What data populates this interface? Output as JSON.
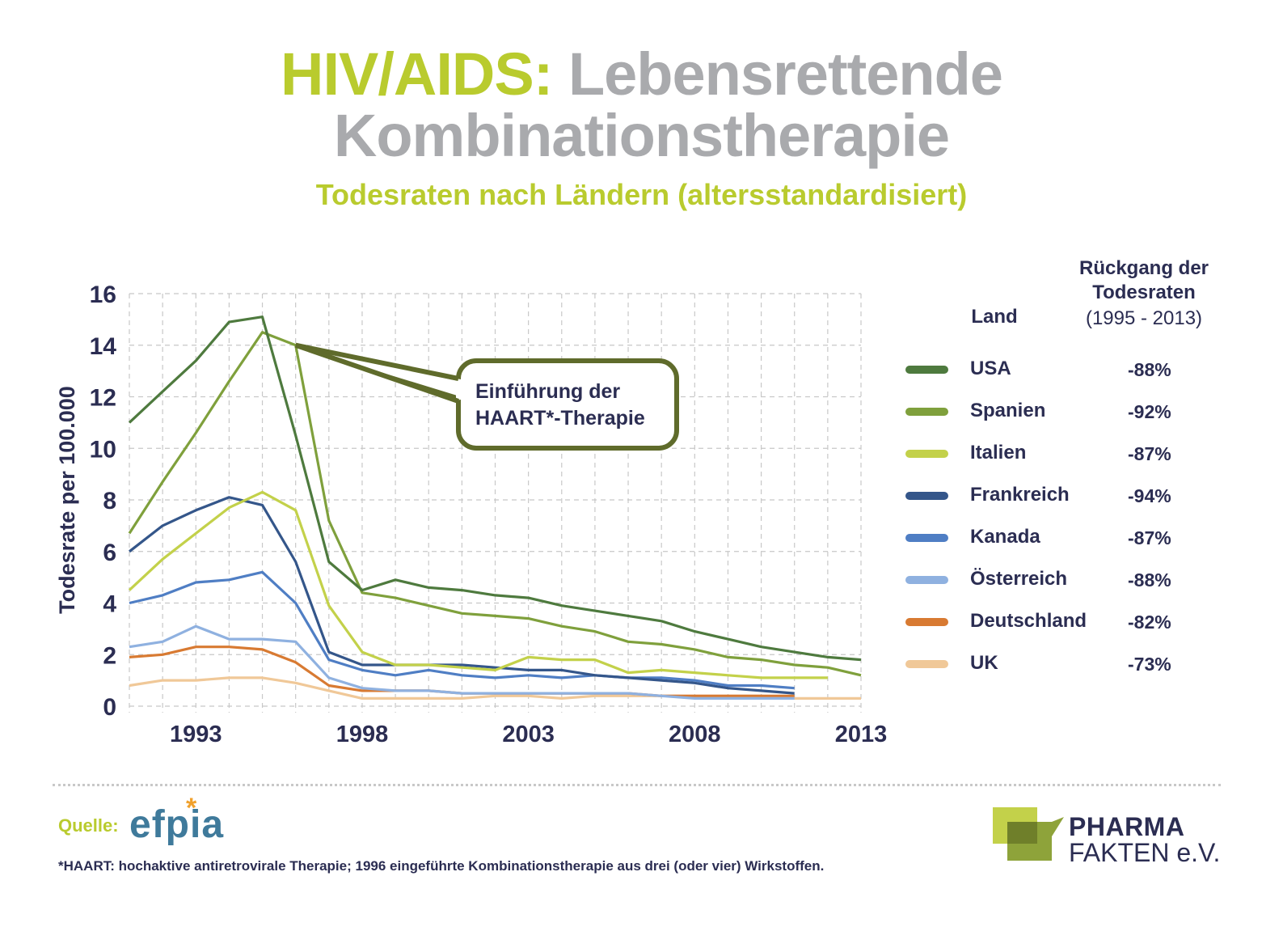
{
  "header": {
    "title_part1": "HIV/AIDS:",
    "title_part2": "Lebensrettende",
    "title_line2": "Kombinationstherapie",
    "subtitle": "Todesraten nach Ländern (altersstandardisiert)"
  },
  "colors": {
    "accent_green": "#b9cb2e",
    "title_grey": "#a9aaad",
    "text_navy": "#2b2d52",
    "callout_border": "#5f6b2b",
    "grid": "#c8c8c8"
  },
  "legend": {
    "col_land": "Land",
    "col_decline_line1": "Rückgang der",
    "col_decline_line2": "Todesraten",
    "col_decline_period": "(1995 - 2013)",
    "rows": [
      {
        "name": "USA",
        "pct": "-88%",
        "color": "#4e7a3e"
      },
      {
        "name": "Spanien",
        "pct": "-92%",
        "color": "#7fa03c"
      },
      {
        "name": "Italien",
        "pct": "-87%",
        "color": "#c3d14a"
      },
      {
        "name": "Frankreich",
        "pct": "-94%",
        "color": "#34568a"
      },
      {
        "name": "Kanada",
        "pct": "-87%",
        "color": "#4f7ec4"
      },
      {
        "name": "Österreich",
        "pct": "-88%",
        "color": "#8fb1e0"
      },
      {
        "name": "Deutschland",
        "pct": "-82%",
        "color": "#d87a32"
      },
      {
        "name": "UK",
        "pct": "-73%",
        "color": "#f0c898"
      }
    ]
  },
  "callout": {
    "line1": "Einführung der",
    "line2": "HAART*-Therapie",
    "target_year": 1996,
    "target_value": 14.0
  },
  "footer": {
    "source_label": "Quelle:",
    "source_logo": "efpia",
    "source_logo_star": "*",
    "footnote": "*HAART: hochaktive antiretrovirale Therapie; 1996 eingeführte Kombinationstherapie aus drei (oder vier) Wirkstoffen.",
    "brand_line1": "PHARMA",
    "brand_line2": "FAKTEN e.V."
  },
  "chart_data": {
    "type": "line",
    "title": "Todesraten nach Ländern (altersstandardisiert)",
    "xlabel": "",
    "ylabel": "Todesrate per 100.000",
    "x": [
      1991,
      1992,
      1993,
      1994,
      1995,
      1996,
      1997,
      1998,
      1999,
      2000,
      2001,
      2002,
      2003,
      2004,
      2005,
      2006,
      2007,
      2008,
      2009,
      2010,
      2011,
      2012,
      2013
    ],
    "xlim": [
      1991,
      2013
    ],
    "ylim": [
      0,
      16
    ],
    "x_ticks": [
      1993,
      1998,
      2003,
      2008,
      2013
    ],
    "y_ticks": [
      0,
      2,
      4,
      6,
      8,
      10,
      12,
      14,
      16
    ],
    "grid": true,
    "legend_position": "right",
    "series": [
      {
        "name": "USA",
        "color": "#4e7a3e",
        "values": [
          11.0,
          12.2,
          13.4,
          14.9,
          15.1,
          10.5,
          5.6,
          4.5,
          4.9,
          4.6,
          4.5,
          4.3,
          4.2,
          3.9,
          3.7,
          3.5,
          3.3,
          2.9,
          2.6,
          2.3,
          2.1,
          1.9,
          1.8
        ]
      },
      {
        "name": "Spanien",
        "color": "#7fa03c",
        "values": [
          6.7,
          8.7,
          10.6,
          12.6,
          14.5,
          14.0,
          7.2,
          4.4,
          4.2,
          3.9,
          3.6,
          3.5,
          3.4,
          3.1,
          2.9,
          2.5,
          2.4,
          2.2,
          1.9,
          1.8,
          1.6,
          1.5,
          1.2
        ]
      },
      {
        "name": "Italien",
        "color": "#c3d14a",
        "values": [
          4.5,
          5.7,
          6.7,
          7.7,
          8.3,
          7.6,
          3.9,
          2.1,
          1.6,
          1.6,
          1.5,
          1.4,
          1.9,
          1.8,
          1.8,
          1.3,
          1.4,
          1.3,
          1.2,
          1.1,
          1.1,
          1.1,
          null
        ]
      },
      {
        "name": "Frankreich",
        "color": "#34568a",
        "values": [
          6.0,
          7.0,
          7.6,
          8.1,
          7.8,
          5.6,
          2.1,
          1.6,
          1.6,
          1.6,
          1.6,
          1.5,
          1.4,
          1.4,
          1.2,
          1.1,
          1.0,
          0.9,
          0.7,
          0.6,
          0.5,
          null,
          null
        ]
      },
      {
        "name": "Kanada",
        "color": "#4f7ec4",
        "values": [
          4.0,
          4.3,
          4.8,
          4.9,
          5.2,
          4.0,
          1.8,
          1.4,
          1.2,
          1.4,
          1.2,
          1.1,
          1.2,
          1.1,
          1.2,
          1.1,
          1.1,
          1.0,
          0.8,
          0.8,
          0.7,
          null,
          null
        ]
      },
      {
        "name": "Österreich",
        "color": "#8fb1e0",
        "values": [
          2.3,
          2.5,
          3.1,
          2.6,
          2.6,
          2.5,
          1.1,
          0.7,
          0.6,
          0.6,
          0.5,
          0.5,
          0.5,
          0.5,
          0.5,
          0.5,
          0.4,
          0.3,
          0.3,
          0.3,
          0.3,
          null,
          null
        ]
      },
      {
        "name": "Deutschland",
        "color": "#d87a32",
        "values": [
          1.9,
          2.0,
          2.3,
          2.3,
          2.2,
          1.7,
          0.8,
          0.6,
          0.6,
          0.6,
          0.5,
          0.5,
          0.5,
          0.5,
          0.5,
          0.5,
          0.4,
          0.4,
          0.4,
          0.4,
          0.4,
          null,
          null
        ]
      },
      {
        "name": "UK",
        "color": "#f0c898",
        "values": [
          0.8,
          1.0,
          1.0,
          1.1,
          1.1,
          0.9,
          0.6,
          0.3,
          0.3,
          0.3,
          0.3,
          0.4,
          0.4,
          0.3,
          0.4,
          0.4,
          0.4,
          0.4,
          0.4,
          0.4,
          0.3,
          0.3,
          0.3
        ]
      }
    ]
  }
}
